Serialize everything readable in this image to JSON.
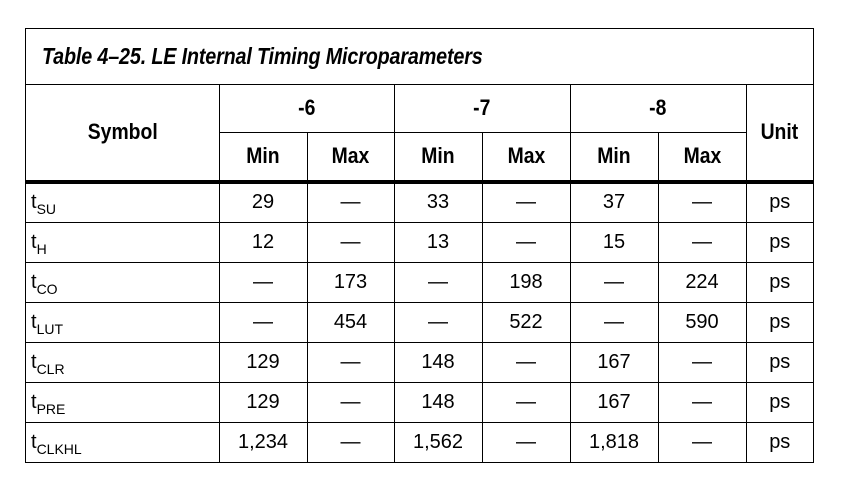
{
  "table": {
    "title": "Table 4–25. LE Internal Timing Microparameters",
    "symbol_header": "Symbol",
    "unit_header": "Unit",
    "speed_grades": [
      "-6",
      "-7",
      "-8"
    ],
    "min_label": "Min",
    "max_label": "Max",
    "rows": [
      {
        "sym": "t",
        "sub": "SU",
        "cells": [
          "29",
          "—",
          "33",
          "—",
          "37",
          "—"
        ],
        "unit": "ps"
      },
      {
        "sym": "t",
        "sub": "H",
        "cells": [
          "12",
          "—",
          "13",
          "—",
          "15",
          "—"
        ],
        "unit": "ps"
      },
      {
        "sym": "t",
        "sub": "CO",
        "cells": [
          "—",
          "173",
          "—",
          "198",
          "—",
          "224"
        ],
        "unit": "ps"
      },
      {
        "sym": "t",
        "sub": "LUT",
        "cells": [
          "—",
          "454",
          "—",
          "522",
          "—",
          "590"
        ],
        "unit": "ps"
      },
      {
        "sym": "t",
        "sub": "CLR",
        "cells": [
          "129",
          "—",
          "148",
          "—",
          "167",
          "—"
        ],
        "unit": "ps"
      },
      {
        "sym": "t",
        "sub": "PRE",
        "cells": [
          "129",
          "—",
          "148",
          "—",
          "167",
          "—"
        ],
        "unit": "ps"
      },
      {
        "sym": "t",
        "sub": "CLKHL",
        "cells": [
          "1,234",
          "—",
          "1,562",
          "—",
          "1,818",
          "—"
        ],
        "unit": "ps"
      }
    ]
  }
}
